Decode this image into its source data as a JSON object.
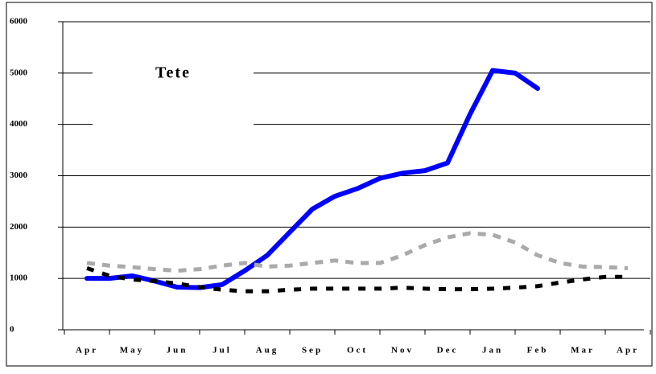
{
  "chart_data": {
    "type": "line",
    "annotation": "Tete",
    "categories": [
      "Apr",
      null,
      "May",
      null,
      "Jun",
      null,
      "Jul",
      null,
      "Aug",
      null,
      "Sep",
      null,
      "Oct",
      null,
      "Nov",
      null,
      "Dec",
      null,
      "Jan",
      null,
      "Feb",
      null,
      "Mar",
      null,
      "Apr"
    ],
    "series": [
      {
        "color": "#0000ff",
        "style": "solid",
        "values": [
          1000,
          1000,
          1050,
          950,
          830,
          820,
          880,
          1150,
          1450,
          1900,
          2350,
          2600,
          2750,
          2950,
          3050,
          3100,
          3250,
          4200,
          5050,
          5000,
          4700,
          null,
          null,
          null,
          null
        ]
      },
      {
        "color": "#aaaaaa",
        "style": "dashed",
        "values": [
          1300,
          1250,
          1220,
          1180,
          1150,
          1180,
          1250,
          1300,
          1230,
          1250,
          1300,
          1350,
          1300,
          1300,
          1450,
          1650,
          1800,
          1880,
          1850,
          1700,
          1450,
          1300,
          1230,
          1220,
          1200
        ]
      },
      {
        "color": "#000000",
        "style": "dashed",
        "values": [
          1200,
          1050,
          980,
          950,
          900,
          830,
          780,
          750,
          750,
          780,
          800,
          800,
          800,
          800,
          820,
          800,
          790,
          790,
          800,
          820,
          850,
          920,
          980,
          1030,
          1030
        ]
      }
    ],
    "ylim": [
      0,
      6000
    ],
    "yticks": [
      0,
      1000,
      2000,
      3000,
      4000,
      5000,
      6000
    ],
    "grid": true
  }
}
